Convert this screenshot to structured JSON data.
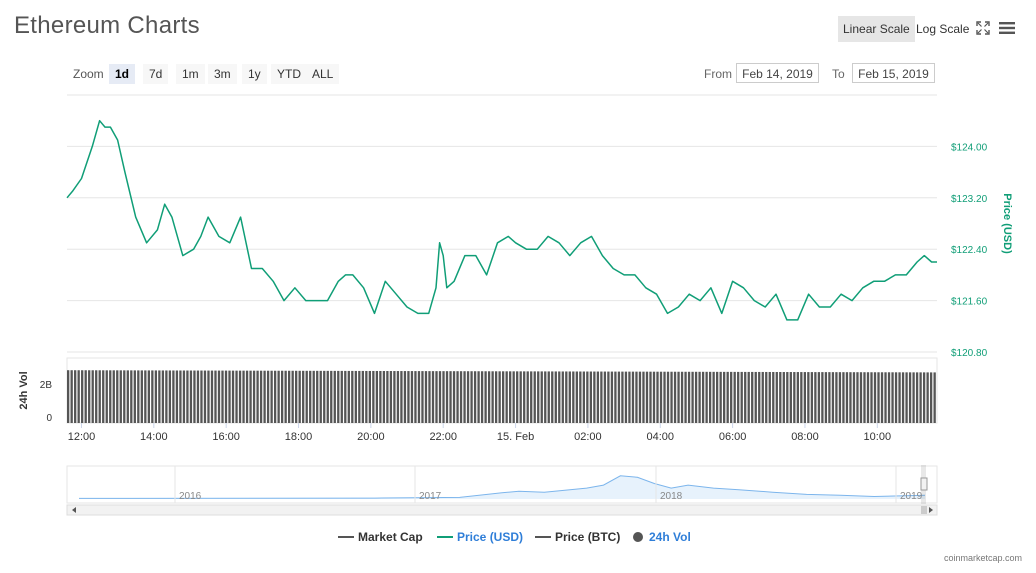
{
  "title": "Ethereum Charts",
  "controls": {
    "linear_scale": "Linear Scale",
    "log_scale": "Log Scale",
    "zoom_label": "Zoom",
    "zoom_options": [
      "1d",
      "7d",
      "1m",
      "3m",
      "1y",
      "YTD",
      "ALL"
    ],
    "zoom_selected": "1d",
    "from_label": "From",
    "from_value": "Feb 14, 2019",
    "to_label": "To",
    "to_value": "Feb 15, 2019"
  },
  "legend": {
    "market_cap": "Market Cap",
    "price_usd": "Price (USD)",
    "price_btc": "Price (BTC)",
    "vol_24h": "24h Vol"
  },
  "credits": "coinmarketcap.com",
  "colors": {
    "price": "#109e77",
    "volume": "#555555",
    "navigator": "#7cb5ec",
    "market_cap": "#555555",
    "btc": "#555555"
  },
  "chart_data": {
    "type": "line",
    "y_axis_title": "Price (USD)",
    "ylim": [
      120.8,
      124.8
    ],
    "y_ticks": [
      124.0,
      123.2,
      122.4,
      121.6,
      120.8
    ],
    "y_tick_labels": [
      "$124.00",
      "$123.20",
      "$122.40",
      "$121.60",
      "$120.80"
    ],
    "x_tick_labels": [
      "12:00",
      "14:00",
      "16:00",
      "18:00",
      "20:00",
      "22:00",
      "15. Feb",
      "02:00",
      "04:00",
      "06:00",
      "08:00",
      "10:00"
    ],
    "x_range_hours": [
      11.6,
      35.65
    ],
    "series": [
      {
        "name": "Price (USD)",
        "x_hours": [
          11.6,
          11.75,
          12.0,
          12.3,
          12.5,
          12.65,
          12.8,
          13.0,
          13.2,
          13.5,
          13.8,
          14.1,
          14.3,
          14.5,
          14.8,
          15.1,
          15.3,
          15.5,
          15.8,
          16.1,
          16.4,
          16.7,
          17.0,
          17.3,
          17.6,
          17.9,
          18.2,
          18.5,
          18.8,
          19.1,
          19.3,
          19.5,
          19.8,
          20.1,
          20.4,
          20.7,
          21.0,
          21.3,
          21.6,
          21.8,
          21.9,
          22.0,
          22.1,
          22.3,
          22.6,
          22.9,
          23.2,
          23.5,
          23.8,
          24.0,
          24.3,
          24.6,
          24.9,
          25.2,
          25.5,
          25.8,
          26.1,
          26.4,
          26.7,
          27.0,
          27.3,
          27.6,
          27.9,
          28.2,
          28.5,
          28.8,
          29.1,
          29.4,
          29.7,
          30.0,
          30.3,
          30.6,
          30.9,
          31.2,
          31.5,
          31.8,
          32.1,
          32.4,
          32.7,
          33.0,
          33.3,
          33.6,
          33.9,
          34.2,
          34.5,
          34.8,
          35.1,
          35.3,
          35.5,
          35.65
        ],
        "values": [
          123.2,
          123.3,
          123.5,
          124.0,
          124.4,
          124.3,
          124.3,
          124.1,
          123.6,
          122.9,
          122.5,
          122.7,
          123.1,
          122.9,
          122.3,
          122.4,
          122.6,
          122.9,
          122.6,
          122.5,
          122.9,
          122.1,
          122.1,
          121.9,
          121.6,
          121.8,
          121.6,
          121.6,
          121.6,
          121.9,
          122.0,
          122.0,
          121.8,
          121.4,
          121.9,
          121.7,
          121.5,
          121.4,
          121.4,
          121.8,
          122.5,
          122.3,
          121.8,
          121.9,
          122.3,
          122.3,
          122.0,
          122.5,
          122.6,
          122.5,
          122.4,
          122.4,
          122.6,
          122.5,
          122.3,
          122.5,
          122.6,
          122.3,
          122.1,
          122.0,
          122.0,
          121.8,
          121.7,
          121.4,
          121.5,
          121.7,
          121.6,
          121.8,
          121.4,
          121.9,
          121.8,
          121.6,
          121.5,
          121.7,
          121.3,
          121.3,
          121.7,
          121.5,
          121.5,
          121.7,
          121.6,
          121.8,
          121.9,
          121.9,
          122.0,
          122.0,
          122.2,
          122.3,
          122.2,
          122.2
        ]
      }
    ],
    "volume": {
      "axis_title": "24h Vol",
      "y_tick_labels": [
        "2B",
        "0"
      ],
      "bars": 248,
      "level_start": 0.96,
      "level_end": 0.92
    },
    "navigator": {
      "year_labels": [
        "2016",
        "2017",
        "2018",
        "2019"
      ],
      "series_name": "Price (USD)"
    },
    "grid": true,
    "legend_position": "bottom"
  }
}
